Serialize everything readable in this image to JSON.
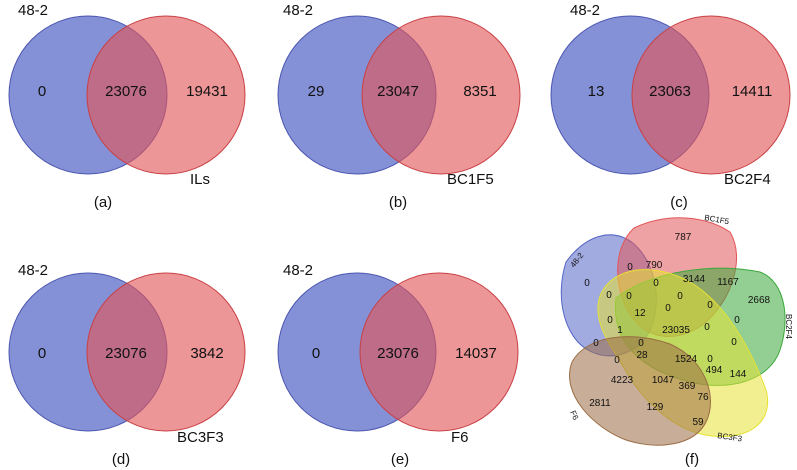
{
  "colors": {
    "blue": "#5566c6",
    "red": "#e25557",
    "green": "#3aa83a",
    "yellow": "#e6e234",
    "brown": "#9a6c43",
    "outline_blue": "#4c56b0",
    "outline_red": "#c94045"
  },
  "panels": [
    {
      "id": "a",
      "left_set": "48-2",
      "right_set": "ILs",
      "left_only": "0",
      "overlap": "23076",
      "right_only": "19431",
      "caption": "(a)"
    },
    {
      "id": "b",
      "left_set": "48-2",
      "right_set": "BC1F5",
      "left_only": "29",
      "overlap": "23047",
      "right_only": "8351",
      "caption": "(b)"
    },
    {
      "id": "c",
      "left_set": "48-2",
      "right_set": "BC2F4",
      "left_only": "13",
      "overlap": "23063",
      "right_only": "14411",
      "caption": "(c)"
    },
    {
      "id": "d",
      "left_set": "48-2",
      "right_set": "BC3F3",
      "left_only": "0",
      "overlap": "23076",
      "right_only": "3842",
      "caption": "(d)"
    },
    {
      "id": "e",
      "left_set": "48-2",
      "right_set": "F6",
      "left_only": "0",
      "overlap": "23076",
      "right_only": "14037",
      "caption": "(e)"
    }
  ],
  "venn5": {
    "caption": "(f)",
    "set_labels": [
      "48-2",
      "BC1F5",
      "BC2F4",
      "BC3F3",
      "F6"
    ],
    "regions": [
      "787",
      "790",
      "3144",
      "1167",
      "2668",
      "0",
      "0",
      "0",
      "0",
      "0",
      "0",
      "0",
      "12",
      "0",
      "0",
      "0",
      "1",
      "23035",
      "0",
      "0",
      "0",
      "0",
      "28",
      "1524",
      "494",
      "144",
      "4223",
      "1047",
      "369",
      "76",
      "2811",
      "129",
      "59",
      "0",
      "0"
    ]
  }
}
